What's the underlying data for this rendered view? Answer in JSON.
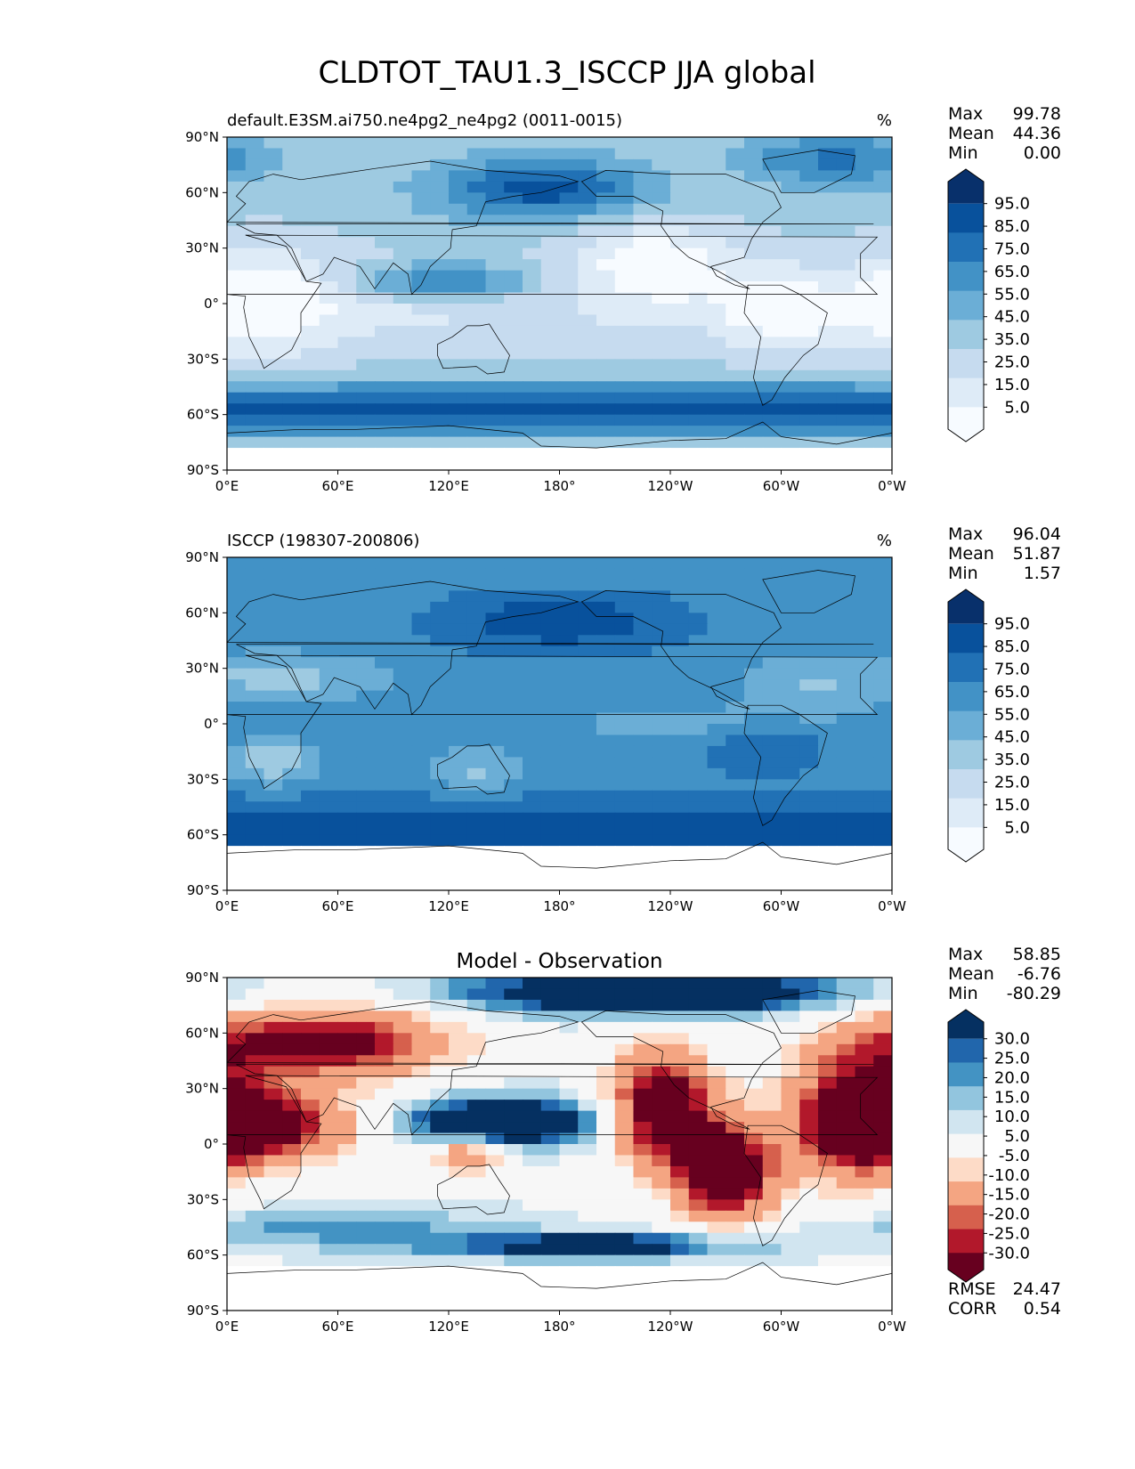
{
  "figure": {
    "title": "CLDTOT_TAU1.3_ISCCP JJA global"
  },
  "axes": {
    "lat_ticks": [
      "90°N",
      "60°N",
      "30°N",
      "0°",
      "30°S",
      "60°S",
      "90°S"
    ],
    "lon_ticks": [
      "0°E",
      "60°E",
      "120°E",
      "180°",
      "120°W",
      "60°W",
      "0°W"
    ]
  },
  "colors": {
    "blues": [
      "#f7fbff",
      "#deebf7",
      "#c6dbef",
      "#9ecae1",
      "#6baed6",
      "#4292c6",
      "#2171b5",
      "#08519c",
      "#08306b"
    ],
    "diverging": [
      "#67001f",
      "#b2182b",
      "#d6604d",
      "#f4a582",
      "#fddbc7",
      "#f7f7f7",
      "#d1e5f0",
      "#92c5de",
      "#4393c3",
      "#2166ac",
      "#053061"
    ],
    "land_outline": "#000000"
  },
  "panels": [
    {
      "id": "model",
      "subtitle_left": "default.E3SM.ai750.ne4pg2_ne4pg2 (0011-0015)",
      "subtitle_center": "",
      "units": "%",
      "stats": [
        {
          "label": "Max",
          "value": "99.78"
        },
        {
          "label": "Mean",
          "value": "44.36"
        },
        {
          "label": "Min",
          "value": "0.00"
        }
      ],
      "colorbar_labels": [
        "95.0",
        "85.0",
        "75.0",
        "65.0",
        "55.0",
        "45.0",
        "35.0",
        "25.0",
        "15.0",
        "5.0"
      ],
      "footer_stats": []
    },
    {
      "id": "obs",
      "subtitle_left": "ISCCP (198307-200806)",
      "subtitle_center": "",
      "units": "%",
      "stats": [
        {
          "label": "Max",
          "value": "96.04"
        },
        {
          "label": "Mean",
          "value": "51.87"
        },
        {
          "label": "Min",
          "value": "1.57"
        }
      ],
      "colorbar_labels": [
        "95.0",
        "85.0",
        "75.0",
        "65.0",
        "55.0",
        "45.0",
        "35.0",
        "25.0",
        "15.0",
        "5.0"
      ],
      "footer_stats": []
    },
    {
      "id": "diff",
      "subtitle_left": "",
      "subtitle_center": "Model - Observation",
      "units": "",
      "stats": [
        {
          "label": "Max",
          "value": "58.85"
        },
        {
          "label": "Mean",
          "value": "-6.76"
        },
        {
          "label": "Min",
          "value": "-80.29"
        }
      ],
      "colorbar_labels": [
        "30.0",
        "25.0",
        "20.0",
        "15.0",
        "10.0",
        "5.0",
        "-5.0",
        "-10.0",
        "-15.0",
        "-20.0",
        "-25.0",
        "-30.0"
      ],
      "footer_stats": [
        {
          "label": "RMSE",
          "value": "24.47"
        },
        {
          "label": "CORR",
          "value": "0.54"
        }
      ]
    }
  ],
  "chart_data": [
    {
      "type": "heatmap",
      "title": "default.E3SM.ai750.ne4pg2_ne4pg2 (0011-0015)",
      "units": "%",
      "x_ticks": [
        "0°E",
        "60°E",
        "120°E",
        "180°",
        "120°W",
        "60°W",
        "0°W"
      ],
      "y_ticks": [
        "90°N",
        "60°N",
        "30°N",
        "0°",
        "30°S",
        "60°S",
        "90°S"
      ],
      "colorbar_levels": [
        5,
        15,
        25,
        35,
        45,
        55,
        65,
        75,
        85,
        95
      ],
      "max": 99.78,
      "mean": 44.36,
      "min": 0.0
    },
    {
      "type": "heatmap",
      "title": "ISCCP (198307-200806)",
      "units": "%",
      "x_ticks": [
        "0°E",
        "60°E",
        "120°E",
        "180°",
        "120°W",
        "60°W",
        "0°W"
      ],
      "y_ticks": [
        "90°N",
        "60°N",
        "30°N",
        "0°",
        "30°S",
        "60°S",
        "90°S"
      ],
      "colorbar_levels": [
        5,
        15,
        25,
        35,
        45,
        55,
        65,
        75,
        85,
        95
      ],
      "max": 96.04,
      "mean": 51.87,
      "min": 1.57
    },
    {
      "type": "heatmap",
      "title": "Model - Observation",
      "x_ticks": [
        "0°E",
        "60°E",
        "120°E",
        "180°",
        "120°W",
        "60°W",
        "0°W"
      ],
      "y_ticks": [
        "90°N",
        "60°N",
        "30°N",
        "0°",
        "30°S",
        "60°S",
        "90°S"
      ],
      "colorbar_levels": [
        -30,
        -25,
        -20,
        -15,
        -10,
        -5,
        5,
        10,
        15,
        20,
        25,
        30
      ],
      "max": 58.85,
      "mean": -6.76,
      "min": -80.29,
      "rmse": 24.47,
      "corr": 0.54
    }
  ]
}
